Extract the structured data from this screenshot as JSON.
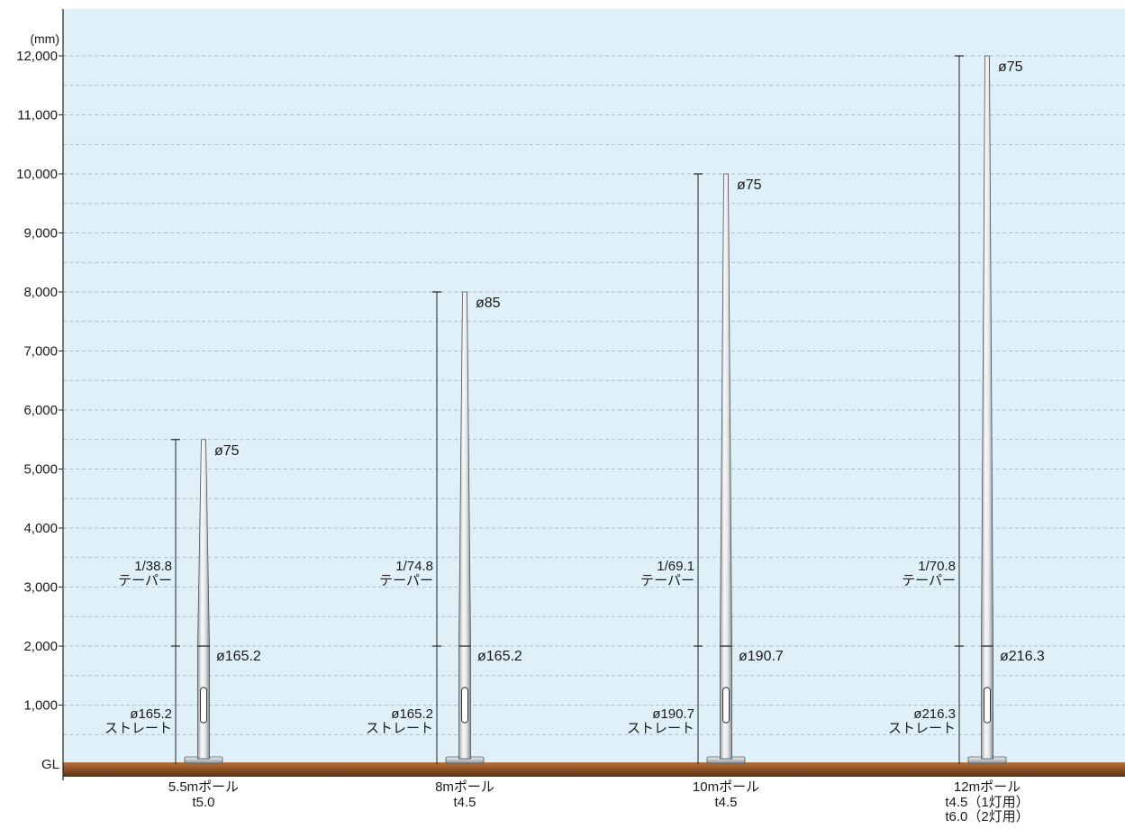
{
  "chart_data": {
    "type": "diagram",
    "y_unit": "(mm)",
    "ground_label": "GL",
    "y_ticks": [
      {
        "value": 1000,
        "label": "1,000"
      },
      {
        "value": 2000,
        "label": "2,000"
      },
      {
        "value": 3000,
        "label": "3,000"
      },
      {
        "value": 4000,
        "label": "4,000"
      },
      {
        "value": 5000,
        "label": "5,000"
      },
      {
        "value": 6000,
        "label": "6,000"
      },
      {
        "value": 7000,
        "label": "7,000"
      },
      {
        "value": 8000,
        "label": "8,000"
      },
      {
        "value": 9000,
        "label": "9,000"
      },
      {
        "value": 10000,
        "label": "10,000"
      },
      {
        "value": 11000,
        "label": "11,000"
      },
      {
        "value": 12000,
        "label": "12,000"
      }
    ],
    "ylim": [
      0,
      12000
    ],
    "grid_minor_step": 500,
    "poles": [
      {
        "height_mm": 5500,
        "straight_height_mm": 2000,
        "top_label": "ø75",
        "joint_label": "ø165.2",
        "taper_ratio": "1/38.8",
        "taper_label": "テーパー",
        "straight_diameter": "ø165.2",
        "straight_label": "ストレート",
        "name": "5.5mポール",
        "thickness": [
          "t5.0"
        ]
      },
      {
        "height_mm": 8000,
        "straight_height_mm": 2000,
        "top_label": "ø85",
        "joint_label": "ø165.2",
        "taper_ratio": "1/74.8",
        "taper_label": "テーパー",
        "straight_diameter": "ø165.2",
        "straight_label": "ストレート",
        "name": "8mポール",
        "thickness": [
          "t4.5"
        ]
      },
      {
        "height_mm": 10000,
        "straight_height_mm": 2000,
        "top_label": "ø75",
        "joint_label": "ø190.7",
        "taper_ratio": "1/69.1",
        "taper_label": "テーパー",
        "straight_diameter": "ø190.7",
        "straight_label": "ストレート",
        "name": "10mポール",
        "thickness": [
          "t4.5"
        ]
      },
      {
        "height_mm": 12000,
        "straight_height_mm": 2000,
        "top_label": "ø75",
        "joint_label": "ø216.3",
        "taper_ratio": "1/70.8",
        "taper_label": "テーパー",
        "straight_diameter": "ø216.3",
        "straight_label": "ストレート",
        "name": "12mポール",
        "thickness": [
          "t4.5（1灯用）",
          "t6.0（2灯用）"
        ]
      }
    ],
    "colors": {
      "background": "#dff0f8",
      "grid": "#9fb3bf",
      "ground_top": "#b5713a",
      "ground_bottom": "#5b3216",
      "pole_light": "#f8f9fa",
      "pole_dark": "#8e9398",
      "dimension_line": "#222222"
    }
  }
}
